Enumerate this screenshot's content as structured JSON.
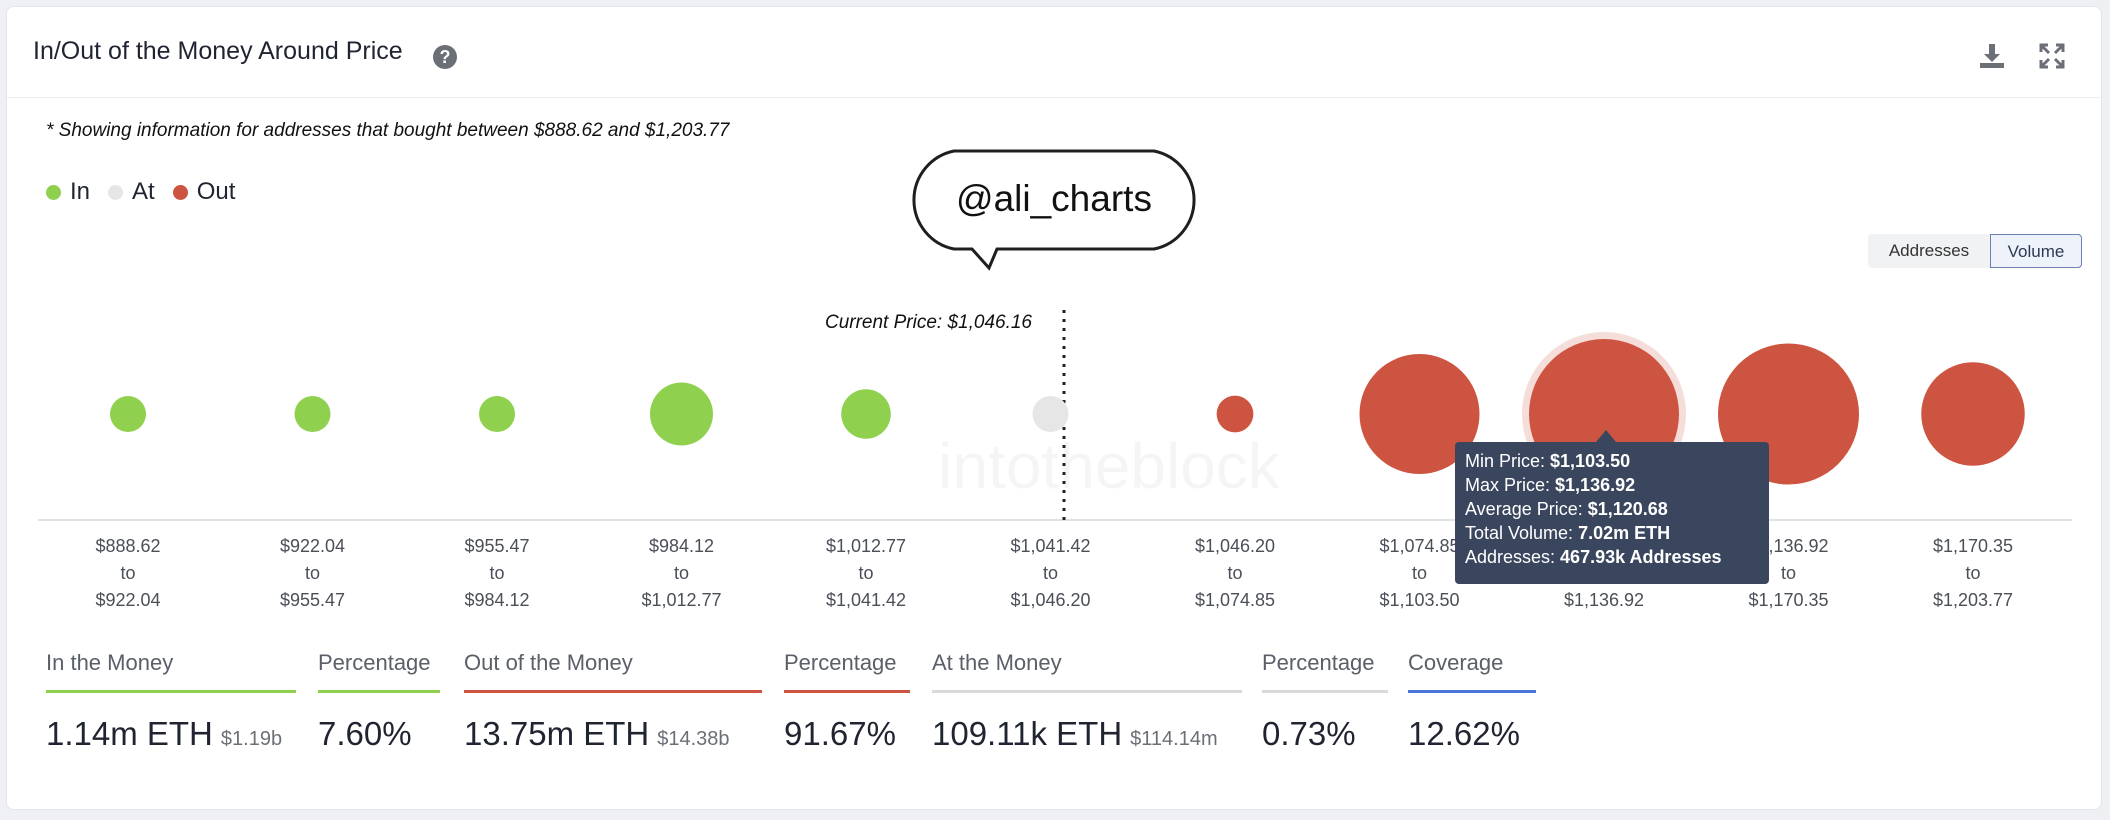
{
  "header": {
    "title": "In/Out of the Money Around Price",
    "help_glyph": "?"
  },
  "note": "* Showing information for addresses that bought between $888.62 and $1,203.77",
  "legend": [
    {
      "label": "In",
      "color": "#8fd14f"
    },
    {
      "label": "At",
      "color": "#e6e6e6"
    },
    {
      "label": "Out",
      "color": "#cd5440"
    }
  ],
  "badge": "@ali_charts",
  "watermark": "intotheblock",
  "toggles": {
    "addresses": "Addresses",
    "volume": "Volume",
    "active": "Volume"
  },
  "chart_data": {
    "type": "bubble",
    "current_price_label": "Current Price: $1,046.16",
    "current_price": 1046.16,
    "buckets": [
      {
        "from": "$888.62",
        "to": "$922.04",
        "status": "in",
        "size": 0.115
      },
      {
        "from": "$922.04",
        "to": "$955.47",
        "status": "in",
        "size": 0.138
      },
      {
        "from": "$955.47",
        "to": "$984.12",
        "status": "in",
        "size": 0.088
      },
      {
        "from": "$984.12",
        "to": "$1,012.77",
        "status": "in",
        "size": 0.42
      },
      {
        "from": "$1,012.77",
        "to": "$1,041.42",
        "status": "in",
        "size": 0.33
      },
      {
        "from": "$1,041.42",
        "to": "$1,046.20",
        "status": "at",
        "size": 0.1
      },
      {
        "from": "$1,046.20",
        "to": "$1,074.85",
        "status": "out",
        "size": 0.245
      },
      {
        "from": "$1,074.85",
        "to": "$1,103.50",
        "status": "out",
        "size": 0.8
      },
      {
        "from": "$1,103.50",
        "to": "$1,136.92",
        "status": "out",
        "size": 1.0
      },
      {
        "from": "$1,136.92",
        "to": "$1,170.35",
        "status": "out",
        "size": 0.94
      },
      {
        "from": "$1,170.35",
        "to": "$1,203.77",
        "status": "out",
        "size": 0.69
      }
    ],
    "to_word": "to",
    "highlighted_index": 8,
    "tooltip": {
      "rows": [
        {
          "label": "Min Price: ",
          "value": "$1,103.50"
        },
        {
          "label": "Max Price: ",
          "value": "$1,136.92"
        },
        {
          "label": "Average Price: ",
          "value": "$1,120.68"
        },
        {
          "label": "Total Volume: ",
          "value": "7.02m ETH"
        },
        {
          "label": "Addresses: ",
          "value": "467.93k Addresses"
        }
      ]
    }
  },
  "stats": [
    {
      "label": "In the Money",
      "value": "1.14m ETH",
      "sub": "$1.19b",
      "color": "#8fd14f"
    },
    {
      "label": "Percentage",
      "value": "7.60%",
      "sub": "",
      "color": "#8fd14f"
    },
    {
      "label": "Out of the Money",
      "value": "13.75m ETH",
      "sub": "$14.38b",
      "color": "#cd5440"
    },
    {
      "label": "Percentage",
      "value": "91.67%",
      "sub": "",
      "color": "#cd5440"
    },
    {
      "label": "At the Money",
      "value": "109.11k ETH",
      "sub": "$114.14m",
      "color": "#d9d9d9"
    },
    {
      "label": "Percentage",
      "value": "0.73%",
      "sub": "",
      "color": "#d9d9d9"
    },
    {
      "label": "Coverage",
      "value": "12.62%",
      "sub": "",
      "color": "#4a74d6"
    }
  ]
}
